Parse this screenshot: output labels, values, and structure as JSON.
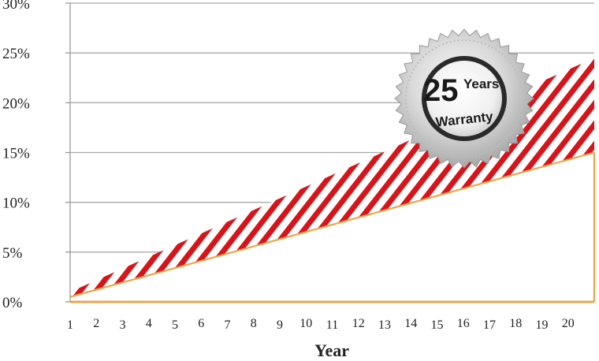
{
  "chart_data": {
    "type": "area",
    "x": [
      1,
      2,
      3,
      4,
      5,
      6,
      7,
      8,
      9,
      10,
      11,
      12,
      13,
      14,
      15,
      16,
      17,
      18,
      19,
      20
    ],
    "xlim": [
      1,
      21
    ],
    "ylim": [
      0,
      30
    ],
    "yticks": [
      "0%",
      "5%",
      "10%",
      "15%",
      "20%",
      "25%",
      "30%"
    ],
    "ytick_values": [
      0,
      5,
      10,
      15,
      20,
      25,
      30
    ],
    "xticks": [
      "1",
      "2",
      "3",
      "4",
      "5",
      "6",
      "7",
      "8",
      "9",
      "10",
      "11",
      "12",
      "13",
      "14",
      "15",
      "16",
      "17",
      "18",
      "19",
      "20"
    ],
    "xlabel": "Year",
    "ylabel": "",
    "title": "",
    "grid": true,
    "series": [
      {
        "values_start": 1,
        "values_end": 24.5,
        "fill": "red-white-diagonal-stripes",
        "color": "#d7141a"
      },
      {
        "values_start": 0.5,
        "values_end": 15,
        "color": "#e8a64a"
      }
    ],
    "badge": {
      "number": "25",
      "word1": "Years",
      "word2": "Warranty",
      "icon": "warranty-seal-icon"
    },
    "colors": {
      "grid": "#a9a9a9",
      "axis": "#e8a64a",
      "stripe": "#d7141a"
    }
  }
}
